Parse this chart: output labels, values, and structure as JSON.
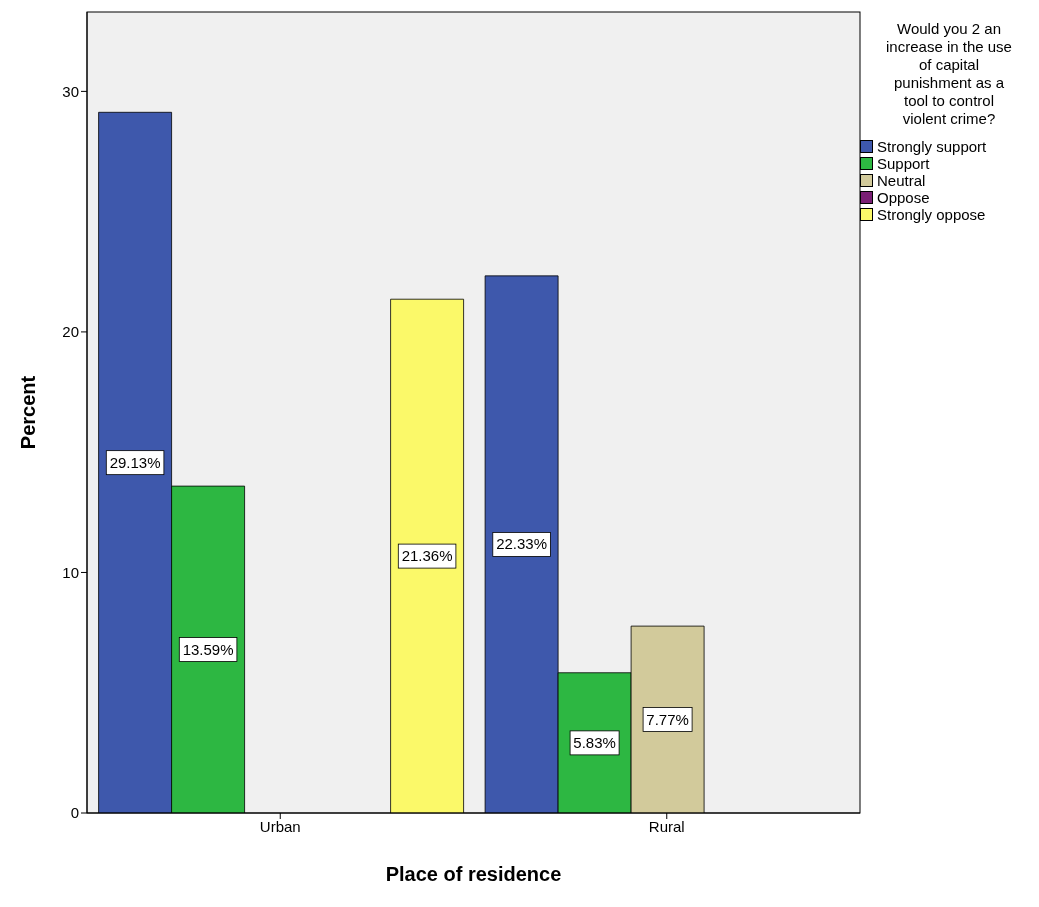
{
  "chart_data": {
    "type": "bar",
    "xlabel": "Place of residence",
    "ylabel": "Percent",
    "legend_title": "Would you 2 an increase in the use of capital punishment as a tool to control violent crime?",
    "categories": [
      "Urban",
      "Rural"
    ],
    "ylim": [
      0,
      33.3
    ],
    "yticks": [
      0,
      10,
      20,
      30
    ],
    "grid": false,
    "legend": "right",
    "series": [
      {
        "name": "Strongly support",
        "color": "#3e58ac",
        "values": [
          29.13,
          22.33
        ],
        "value_labels": [
          "29.13%",
          "22.33%"
        ]
      },
      {
        "name": "Support",
        "color": "#2db742",
        "values": [
          13.59,
          5.83
        ],
        "value_labels": [
          "13.59%",
          "5.83%"
        ]
      },
      {
        "name": "Neutral",
        "color": "#d2ca9b",
        "values": [
          null,
          7.77
        ],
        "value_labels": [
          null,
          "7.77%"
        ]
      },
      {
        "name": "Oppose",
        "color": "#7a1f75",
        "values": [
          null,
          null
        ],
        "value_labels": [
          null,
          null
        ]
      },
      {
        "name": "Strongly oppose",
        "color": "#fbf969",
        "values": [
          21.36,
          null
        ],
        "value_labels": [
          "21.36%",
          null
        ]
      }
    ]
  }
}
